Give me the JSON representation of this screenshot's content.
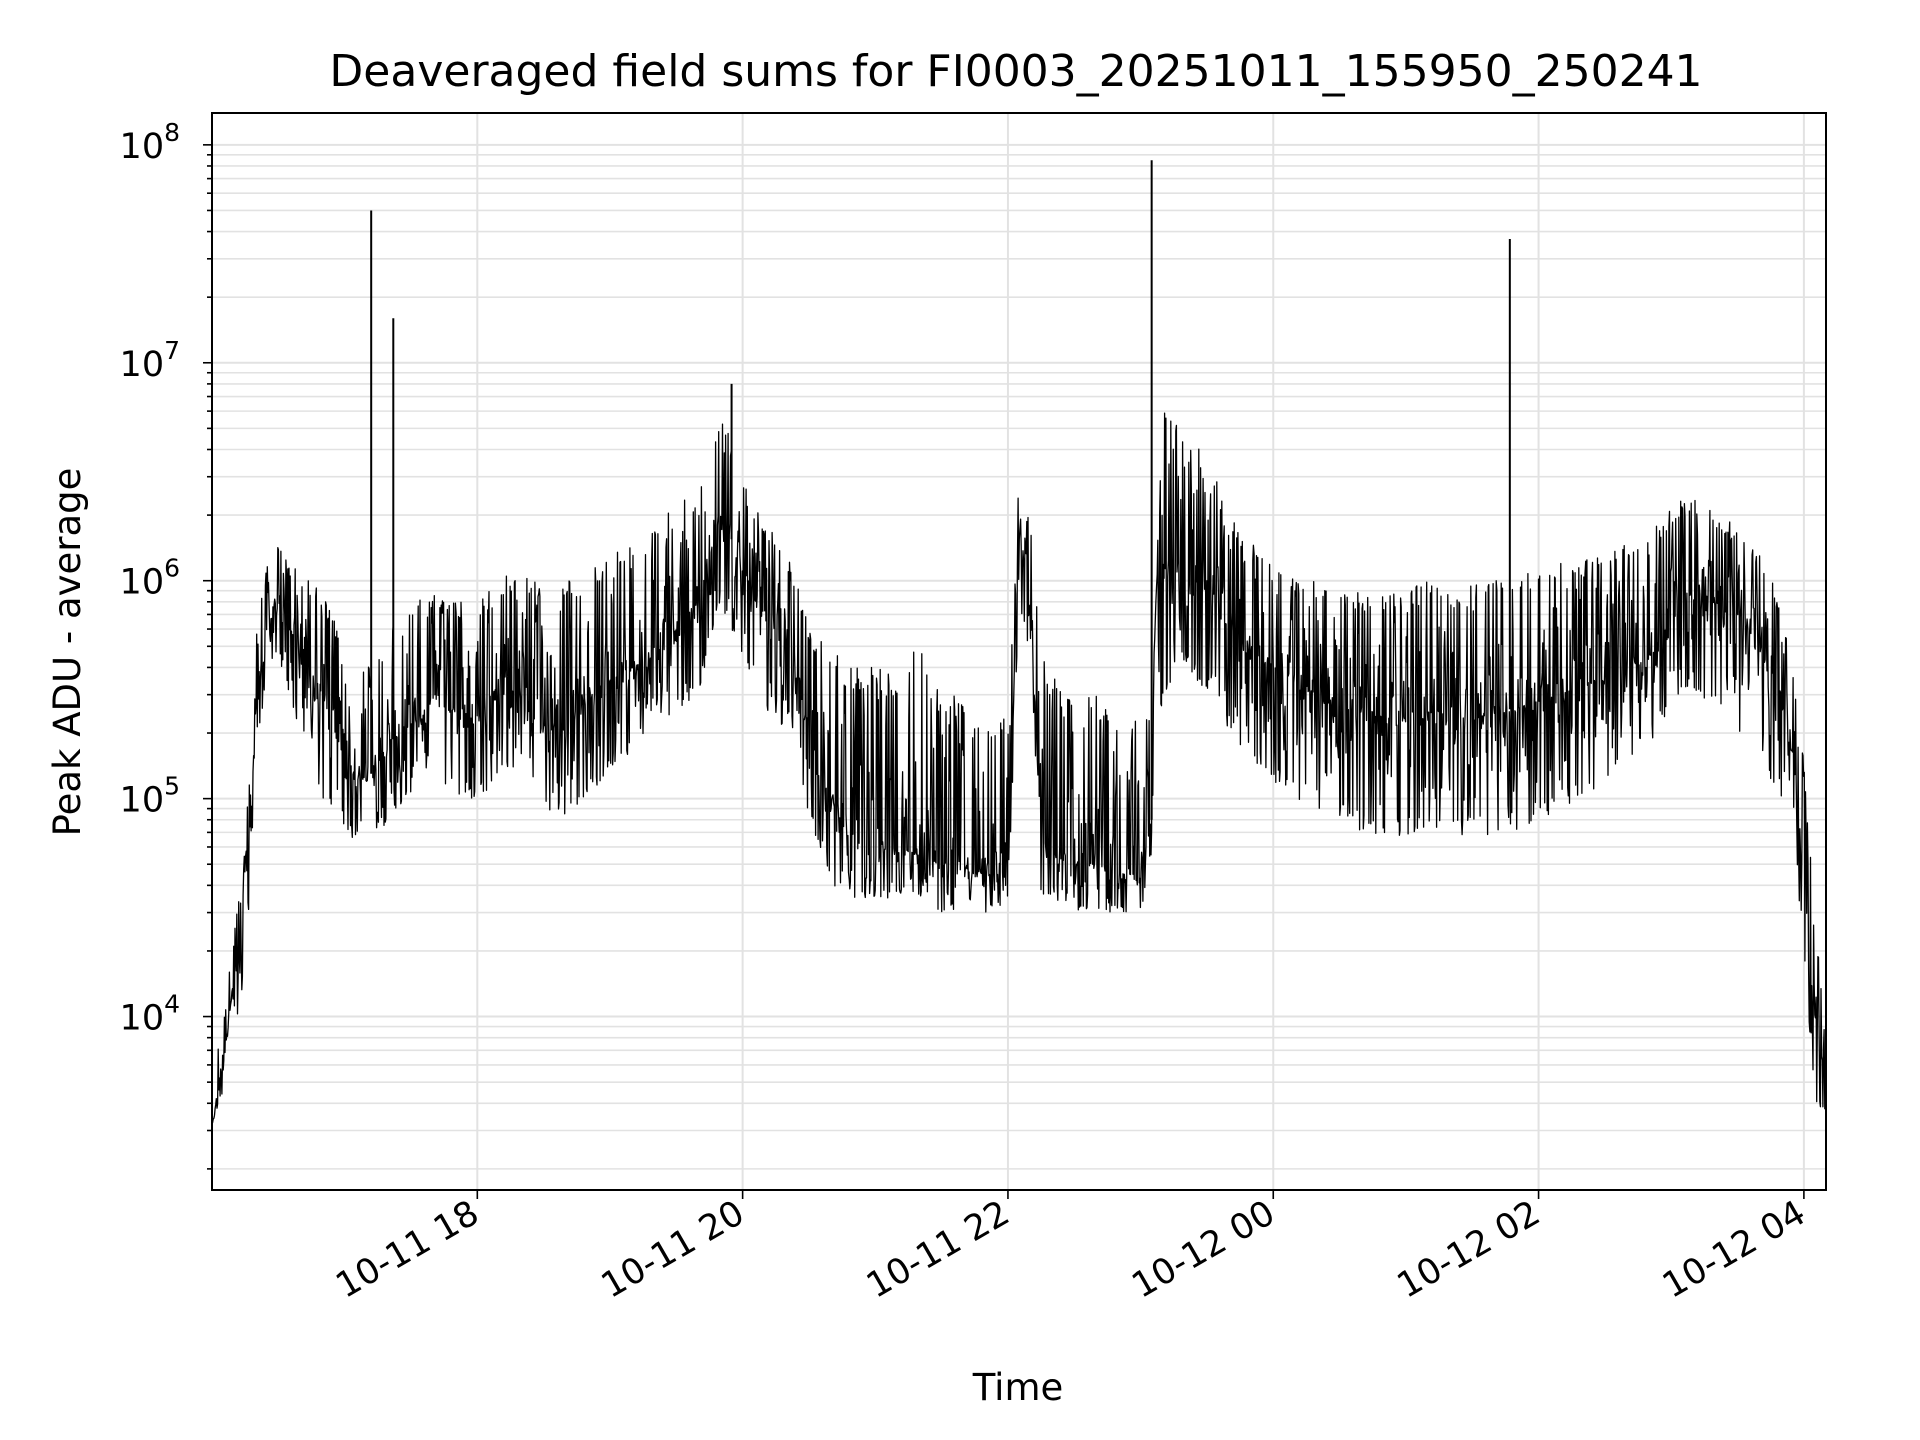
{
  "chart_data": {
    "type": "line",
    "title": "Deaveraged field sums for FI0003_20251011_155950_250241",
    "xlabel": "Time",
    "ylabel": "Peak ADU - average",
    "yscale": "log",
    "ylim": [
      1600,
      140000000
    ],
    "xlim": [
      "2025-10-11 16:00",
      "2025-10-12 04:10"
    ],
    "grid": true,
    "line_color": "#000000",
    "x_ticks": [
      "10-11 18",
      "10-11 20",
      "10-11 22",
      "10-12 00",
      "10-12 02",
      "10-12 04"
    ],
    "x_tick_times": [
      "2025-10-11 18:00",
      "2025-10-11 20:00",
      "2025-10-11 22:00",
      "2025-10-12 00:00",
      "2025-10-12 02:00",
      "2025-10-12 04:00"
    ],
    "y_ticks": [
      {
        "base": "10",
        "exp": "4",
        "value": 10000
      },
      {
        "base": "10",
        "exp": "5",
        "value": 100000
      },
      {
        "base": "10",
        "exp": "6",
        "value": 1000000
      },
      {
        "base": "10",
        "exp": "7",
        "value": 10000000
      },
      {
        "base": "10",
        "exp": "8",
        "value": 100000000
      }
    ],
    "series": [
      {
        "x": [
          "2025-10-11 16:00",
          "2025-10-11 16:05",
          "2025-10-11 16:10",
          "2025-10-11 16:15",
          "2025-10-11 16:20",
          "2025-10-11 16:25",
          "2025-10-11 16:30",
          "2025-10-11 16:40",
          "2025-10-11 16:50",
          "2025-10-11 17:00",
          "2025-10-11 17:10",
          "2025-10-11 17:20",
          "2025-10-11 17:30",
          "2025-10-11 17:40",
          "2025-10-11 17:50",
          "2025-10-11 18:00",
          "2025-10-11 18:10",
          "2025-10-11 18:20",
          "2025-10-11 18:30",
          "2025-10-11 18:40",
          "2025-10-11 18:50",
          "2025-10-11 19:00",
          "2025-10-11 19:10",
          "2025-10-11 19:20",
          "2025-10-11 19:30",
          "2025-10-11 19:40",
          "2025-10-11 19:50",
          "2025-10-11 20:00",
          "2025-10-11 20:10",
          "2025-10-11 20:20",
          "2025-10-11 20:30",
          "2025-10-11 20:40",
          "2025-10-11 20:50",
          "2025-10-11 21:00",
          "2025-10-11 21:10",
          "2025-10-11 21:20",
          "2025-10-11 21:30",
          "2025-10-11 21:40",
          "2025-10-11 21:50",
          "2025-10-11 22:00",
          "2025-10-11 22:05",
          "2025-10-11 22:10",
          "2025-10-11 22:15",
          "2025-10-11 22:20",
          "2025-10-11 22:30",
          "2025-10-11 22:40",
          "2025-10-11 22:50",
          "2025-10-11 23:00",
          "2025-10-11 23:05",
          "2025-10-11 23:10",
          "2025-10-11 23:20",
          "2025-10-11 23:30",
          "2025-10-11 23:40",
          "2025-10-11 23:50",
          "2025-10-12 00:00",
          "2025-10-12 00:10",
          "2025-10-12 00:20",
          "2025-10-12 00:30",
          "2025-10-12 00:40",
          "2025-10-12 00:50",
          "2025-10-12 01:00",
          "2025-10-12 01:10",
          "2025-10-12 01:20",
          "2025-10-12 01:30",
          "2025-10-12 01:40",
          "2025-10-12 01:50",
          "2025-10-12 02:00",
          "2025-10-12 02:10",
          "2025-10-12 02:20",
          "2025-10-12 02:30",
          "2025-10-12 02:40",
          "2025-10-12 02:50",
          "2025-10-12 03:00",
          "2025-10-12 03:10",
          "2025-10-12 03:20",
          "2025-10-12 03:30",
          "2025-10-12 03:40",
          "2025-10-12 03:50",
          "2025-10-12 03:55",
          "2025-10-12 04:00",
          "2025-10-12 04:05",
          "2025-10-12 04:10"
        ],
        "y": [
          3200,
          6000,
          15000,
          30000,
          250000,
          600000,
          800000,
          500000,
          300000,
          150000,
          120000,
          180000,
          220000,
          280000,
          250000,
          240000,
          300000,
          320000,
          200000,
          220000,
          300000,
          350000,
          400000,
          450000,
          600000,
          800000,
          2000000,
          1200000,
          600000,
          500000,
          200000,
          100000,
          60000,
          55000,
          60000,
          55000,
          50000,
          50000,
          45000,
          45000,
          1500000,
          900000,
          60000,
          55000,
          50000,
          50000,
          45000,
          45000,
          80000,
          1200000,
          1000000,
          900000,
          600000,
          500000,
          400000,
          350000,
          300000,
          250000,
          250000,
          230000,
          230000,
          250000,
          240000,
          230000,
          250000,
          260000,
          280000,
          300000,
          330000,
          350000,
          400000,
          450000,
          650000,
          900000,
          800000,
          700000,
          500000,
          300000,
          150000,
          50000,
          10000,
          5000
        ],
        "y_low": [
          3200,
          4500,
          8000,
          15000,
          150000,
          400000,
          450000,
          200000,
          100000,
          70000,
          60000,
          80000,
          100000,
          110000,
          100000,
          100000,
          120000,
          140000,
          90000,
          80000,
          100000,
          140000,
          160000,
          200000,
          250000,
          300000,
          800000,
          400000,
          250000,
          200000,
          80000,
          40000,
          35000,
          35000,
          35000,
          35000,
          30000,
          30000,
          30000,
          30000,
          800000,
          400000,
          35000,
          33000,
          30000,
          30000,
          30000,
          30000,
          50000,
          300000,
          400000,
          300000,
          200000,
          150000,
          120000,
          100000,
          90000,
          80000,
          70000,
          65000,
          65000,
          70000,
          70000,
          65000,
          70000,
          70000,
          80000,
          90000,
          100000,
          110000,
          150000,
          180000,
          250000,
          300000,
          250000,
          200000,
          150000,
          100000,
          60000,
          20000,
          4000,
          3500
        ],
        "y_high": [
          5000,
          10000,
          25000,
          60000,
          600000,
          1200000,
          1500000,
          1100000,
          900000,
          500000,
          400000,
          600000,
          800000,
          900000,
          800000,
          800000,
          1000000,
          1200000,
          900000,
          1000000,
          1100000,
          1300000,
          1500000,
          1800000,
          2200000,
          2600000,
          6000000,
          3000000,
          1800000,
          1500000,
          600000,
          500000,
          400000,
          400000,
          400000,
          500000,
          300000,
          300000,
          250000,
          250000,
          3000000,
          2000000,
          500000,
          400000,
          300000,
          300000,
          250000,
          250000,
          300000,
          6000000,
          5000000,
          4000000,
          2000000,
          1500000,
          1200000,
          1000000,
          1000000,
          900000,
          900000,
          1000000,
          900000,
          1000000,
          900000,
          1000000,
          1000000,
          1100000,
          1200000,
          1200000,
          1300000,
          1300000,
          1500000,
          1600000,
          2200000,
          2500000,
          2000000,
          1800000,
          1300000,
          800000,
          400000,
          150000,
          30000,
          12000
        ],
        "spikes": [
          {
            "x": "2025-10-11 17:12",
            "y": 50000000
          },
          {
            "x": "2025-10-11 17:22",
            "y": 16000000
          },
          {
            "x": "2025-10-11 19:55",
            "y": 8000000
          },
          {
            "x": "2025-10-11 23:05",
            "y": 85000000
          },
          {
            "x": "2025-10-12 01:47",
            "y": 37000000
          }
        ]
      }
    ]
  }
}
